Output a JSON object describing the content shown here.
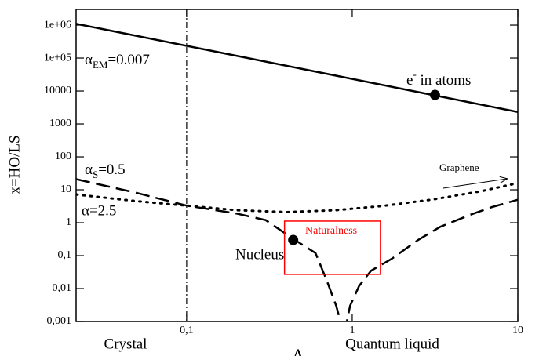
{
  "chart_data": {
    "type": "line",
    "y_label": "x=HO/LS",
    "x_label": "Λ",
    "log_x": true,
    "log_y": true,
    "xlim": [
      0.0215,
      10
    ],
    "ylim": [
      0.001,
      3000000
    ],
    "xticks": [
      {
        "value": 0.1,
        "label": "0,1"
      },
      1,
      10
    ],
    "yticks": [
      {
        "value": 0.001,
        "label": "0,001"
      },
      {
        "value": 0.01,
        "label": "0,01"
      },
      {
        "value": 0.1,
        "label": "0,1"
      },
      1,
      10,
      100,
      1000,
      10000,
      {
        "value": 100000,
        "label": "1e+05"
      },
      {
        "value": 1000000,
        "label": "1e+06"
      }
    ],
    "series": [
      {
        "style": "solid",
        "color": "#000000",
        "x": [
          0.0215,
          10
        ],
        "values": [
          1100000,
          2300
        ]
      },
      {
        "style": "dashed",
        "color": "#000000",
        "x": [
          0.0215,
          0.05,
          0.1,
          0.2,
          0.3,
          0.45,
          0.6,
          0.7,
          0.8,
          0.86,
          0.92,
          0.97,
          1.1,
          1.3,
          1.73,
          2.5,
          3.4,
          5.1,
          7,
          10
        ],
        "values": [
          21,
          8,
          3.3,
          1.9,
          1.2,
          0.3,
          0.12,
          0.018,
          0.003,
          0.0008,
          0.0008,
          0.003,
          0.012,
          0.035,
          0.08,
          0.3,
          0.75,
          1.7,
          3,
          5
        ]
      },
      {
        "style": "dotted",
        "color": "#000000",
        "x": [
          0.0215,
          0.05,
          0.1,
          0.2,
          0.4,
          0.8,
          1.5,
          3,
          6,
          10
        ],
        "values": [
          7.2,
          4.5,
          3.3,
          2.4,
          2.1,
          2.4,
          3.2,
          5,
          9,
          16
        ]
      }
    ],
    "vline": {
      "x": 0.1,
      "style": "dashdot"
    },
    "points": [
      {
        "x": 3.16,
        "y": 7600
      },
      {
        "x": 0.44,
        "y": 0.3
      }
    ],
    "box": {
      "x": [
        0.39,
        1.48
      ],
      "y": [
        0.027,
        1.12
      ],
      "color": "#ff0000"
    },
    "annotations": {
      "alpha_em": {
        "symbol": "α",
        "sub": "EM",
        "rest": "=0.007"
      },
      "alpha_s": {
        "symbol": "α",
        "sub": "S",
        "rest": "=0.5"
      },
      "alpha": "α=2.5",
      "electron": {
        "base": "e",
        "sup": "-",
        "rest": " in atoms"
      },
      "nucleus": "Nucleus",
      "naturalness": "Naturalness",
      "graphene": "Graphene",
      "crystal": "Crystal",
      "quantum_liquid": "Quantum liquid"
    }
  }
}
